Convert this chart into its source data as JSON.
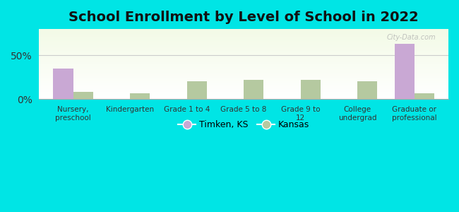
{
  "title": "School Enrollment by Level of School in 2022",
  "categories": [
    "Nursery,\npreschool",
    "Kindergarten",
    "Grade 1 to 4",
    "Grade 5 to 8",
    "Grade 9 to\n12",
    "College\nundergrad",
    "Graduate or\nprofessional"
  ],
  "timken_values": [
    35,
    0,
    0,
    0,
    0,
    0,
    63
  ],
  "kansas_values": [
    8,
    7,
    20,
    22,
    22,
    20,
    7
  ],
  "timken_color": "#c9a8d4",
  "kansas_color": "#b5c9a0",
  "background_color": "#00e5e5",
  "yticks": [
    0,
    50
  ],
  "ytick_labels": [
    "0%",
    "50%"
  ],
  "ylim": [
    0,
    80
  ],
  "legend_timken": "Timken, KS",
  "legend_kansas": "Kansas",
  "title_fontsize": 14,
  "bar_width": 0.35,
  "watermark": "City-Data.com"
}
